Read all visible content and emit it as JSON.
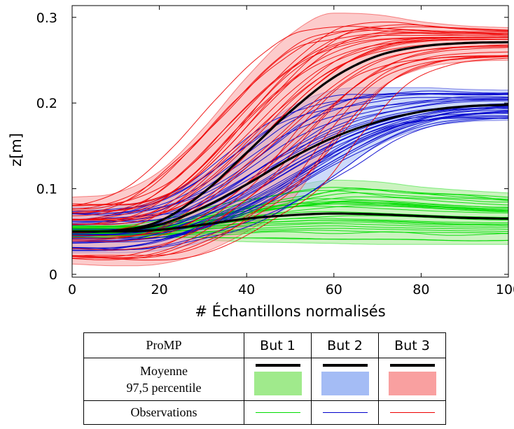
{
  "chart_data": {
    "type": "line",
    "xlabel": "# Échantillons normalisés",
    "ylabel": "z[m]",
    "xlim": [
      0,
      100
    ],
    "ylim": [
      0,
      0.32
    ],
    "xticks": [
      0,
      20,
      40,
      60,
      80,
      100
    ],
    "yticks": [
      0,
      0.1,
      0.2,
      0.3
    ],
    "xtick_labels": [
      "0",
      "20",
      "40",
      "60",
      "80",
      "100"
    ],
    "ytick_labels": [
      "0",
      "0.1",
      "0.2",
      "0.3"
    ],
    "grid": false,
    "series": [
      {
        "name": "But 1",
        "color": "#00dd00",
        "band_color": "#a0ea8c",
        "mean": {
          "x": [
            0,
            10,
            20,
            30,
            40,
            50,
            60,
            70,
            80,
            90,
            100
          ],
          "y": [
            0.05,
            0.05,
            0.052,
            0.058,
            0.065,
            0.069,
            0.071,
            0.07,
            0.068,
            0.066,
            0.065
          ]
        },
        "band_upper": [
          0.058,
          0.058,
          0.062,
          0.075,
          0.09,
          0.102,
          0.11,
          0.108,
          0.102,
          0.098,
          0.095
        ],
        "band_lower": [
          0.042,
          0.042,
          0.042,
          0.04,
          0.038,
          0.037,
          0.036,
          0.035,
          0.035,
          0.035,
          0.035
        ]
      },
      {
        "name": "But 2",
        "color": "#0000cc",
        "band_color": "#a4bcf5",
        "mean": {
          "x": [
            0,
            10,
            20,
            30,
            40,
            50,
            60,
            70,
            80,
            90,
            100
          ],
          "y": [
            0.05,
            0.051,
            0.058,
            0.078,
            0.105,
            0.135,
            0.16,
            0.178,
            0.19,
            0.196,
            0.198
          ]
        },
        "band_upper": [
          0.078,
          0.08,
          0.09,
          0.115,
          0.155,
          0.195,
          0.215,
          0.218,
          0.218,
          0.216,
          0.215
        ],
        "band_lower": [
          0.025,
          0.025,
          0.028,
          0.038,
          0.055,
          0.08,
          0.115,
          0.15,
          0.17,
          0.178,
          0.18
        ]
      },
      {
        "name": "But 3",
        "color": "#ee0000",
        "band_color": "#f9a0a0",
        "mean": {
          "x": [
            0,
            10,
            20,
            30,
            40,
            50,
            60,
            70,
            80,
            90,
            100
          ],
          "y": [
            0.05,
            0.051,
            0.062,
            0.095,
            0.142,
            0.19,
            0.23,
            0.255,
            0.266,
            0.27,
            0.271
          ]
        },
        "band_upper": [
          0.09,
          0.095,
          0.12,
          0.17,
          0.23,
          0.28,
          0.305,
          0.303,
          0.295,
          0.29,
          0.288
        ],
        "band_lower": [
          0.012,
          0.01,
          0.012,
          0.025,
          0.05,
          0.085,
          0.155,
          0.215,
          0.24,
          0.248,
          0.25
        ]
      }
    ]
  },
  "legend": {
    "header": "ProMP",
    "goals": [
      "But 1",
      "But 2",
      "But 3"
    ],
    "row_mean_label": "Moyenne",
    "row_band_label": "97,5 percentile",
    "row_obs_label": "Observations"
  }
}
